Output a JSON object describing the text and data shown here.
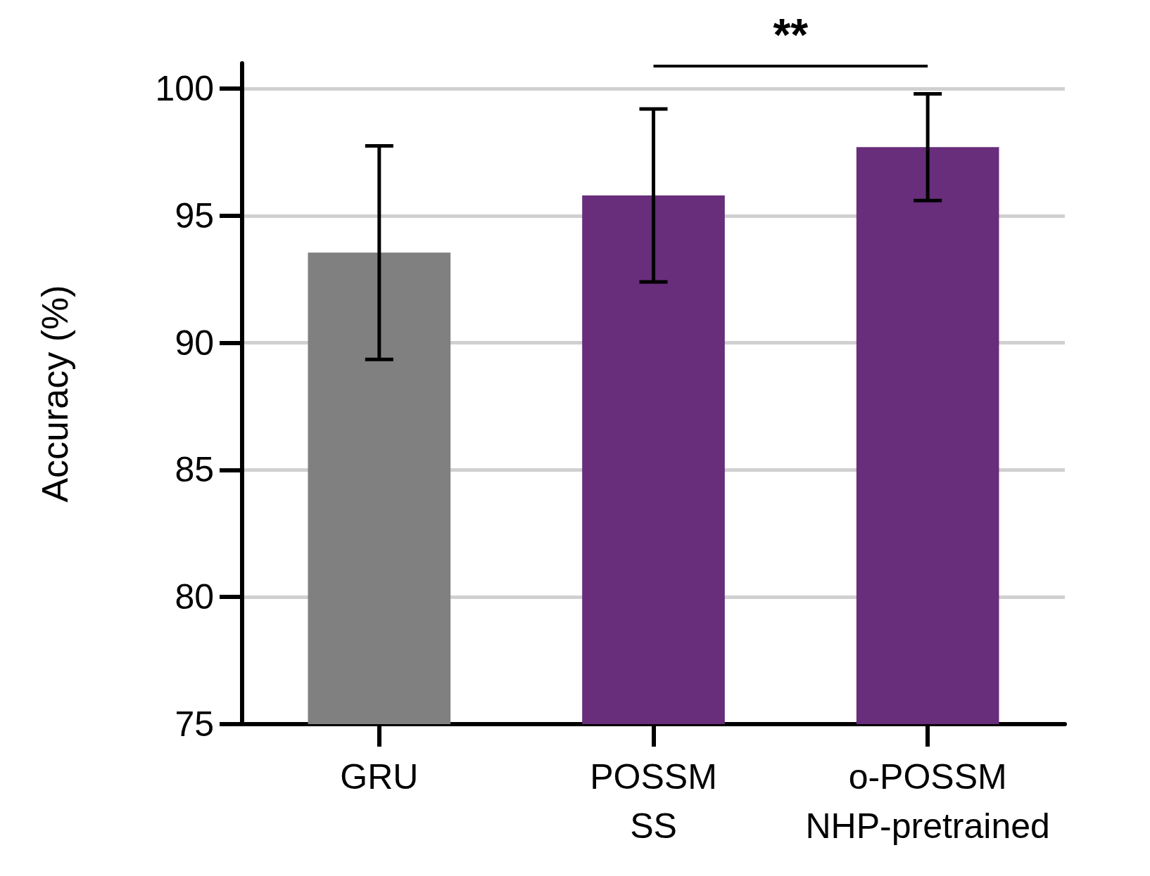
{
  "chart_data": {
    "type": "bar",
    "categories": [
      "GRU",
      "POSSM\nSS",
      "o-POSSM\nNHP-pretrained"
    ],
    "values": [
      93.55,
      95.8,
      97.7
    ],
    "colors": [
      "#808080",
      "#682d7b",
      "#682d7b"
    ],
    "errors": [
      4.2,
      3.4,
      2.1
    ],
    "ylabel": "Accuracy (%)",
    "ylim": [
      75,
      101
    ],
    "yticks": [
      75,
      80,
      85,
      90,
      95,
      100
    ],
    "grid": "y",
    "annotations": [
      {
        "text": "**"
      }
    ]
  }
}
